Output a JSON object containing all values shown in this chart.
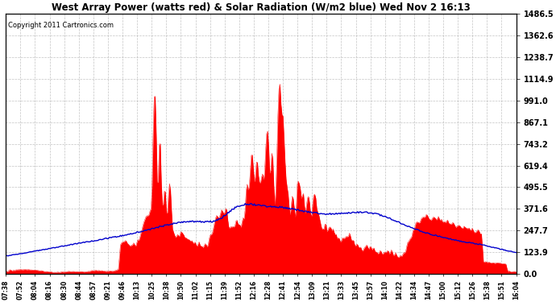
{
  "title": "West Array Power (watts red) & Solar Radiation (W/m2 blue) Wed Nov 2 16:13",
  "copyright": "Copyright 2011 Cartronics.com",
  "ylabel_right_ticks": [
    0.0,
    123.9,
    247.7,
    371.6,
    495.5,
    619.4,
    743.2,
    867.1,
    991.0,
    1114.9,
    1238.7,
    1362.6,
    1486.5
  ],
  "ylim": [
    0,
    1486.5
  ],
  "bg_color": "#ffffff",
  "plot_bg_color": "#ffffff",
  "grid_color": "#aaaaaa",
  "power_color": "#ff0000",
  "radiation_color": "#0000cc",
  "x_labels": [
    "07:38",
    "07:52",
    "08:04",
    "08:16",
    "08:30",
    "08:44",
    "08:57",
    "09:21",
    "09:46",
    "10:13",
    "10:25",
    "10:38",
    "10:50",
    "11:02",
    "11:15",
    "11:39",
    "11:52",
    "12:16",
    "12:28",
    "12:41",
    "12:54",
    "13:09",
    "13:21",
    "13:33",
    "13:45",
    "13:57",
    "14:10",
    "14:22",
    "14:34",
    "14:47",
    "15:00",
    "15:12",
    "15:26",
    "15:38",
    "15:51",
    "16:04"
  ]
}
